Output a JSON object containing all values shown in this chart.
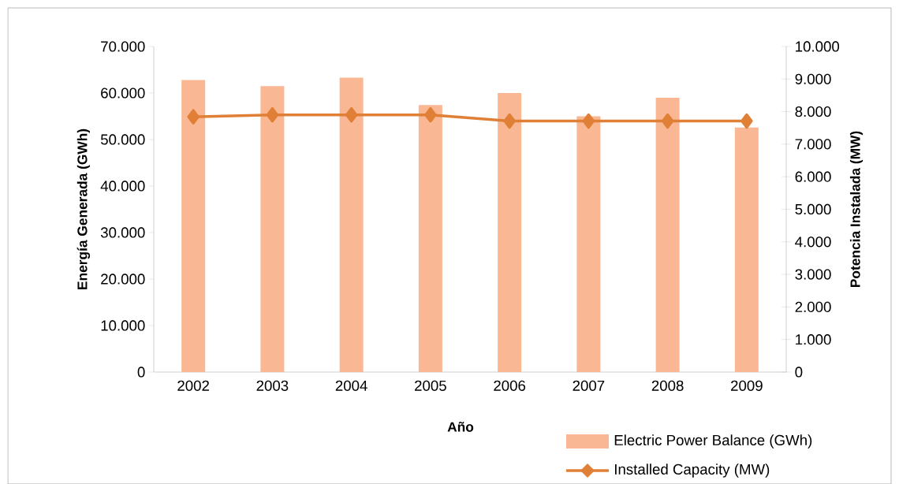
{
  "chart_data": {
    "type": "bar",
    "xlabel": "Año",
    "ylabel": "Energía Generada (GWh)",
    "y2label": "Potencia Instalada (MW)",
    "categories": [
      "2002",
      "2003",
      "2004",
      "2005",
      "2006",
      "2007",
      "2008",
      "2009"
    ],
    "series": [
      {
        "name": "Electric Power Balance (GWh)",
        "color": "#f9b793",
        "values": [
          62800,
          61500,
          63300,
          57400,
          60000,
          55000,
          59000,
          52600
        ]
      },
      {
        "name": "Installed Capacity (MW)",
        "type": "line",
        "axis": "y2",
        "color": "#e07f36",
        "marker": "diamond",
        "values": [
          7840,
          7900,
          7900,
          7900,
          7710,
          7710,
          7710,
          7710
        ]
      }
    ],
    "ylim": [
      0,
      70000
    ],
    "yticks": [
      0,
      {
        "value": 10000,
        "label": "10.000"
      },
      {
        "value": 20000,
        "label": "20.000"
      },
      {
        "value": 30000,
        "label": "30.000"
      },
      {
        "value": 40000,
        "label": "40.000"
      },
      {
        "value": 50000,
        "label": "50.000"
      },
      {
        "value": 60000,
        "label": "60.000"
      },
      {
        "value": 70000,
        "label": "70.000"
      }
    ],
    "y2lim": [
      0,
      10000
    ],
    "y2ticks": [
      0,
      {
        "value": 1000,
        "label": "1.000"
      },
      {
        "value": 2000,
        "label": "2.000"
      },
      {
        "value": 3000,
        "label": "3.000"
      },
      {
        "value": 4000,
        "label": "4.000"
      },
      {
        "value": 5000,
        "label": "5.000"
      },
      {
        "value": 6000,
        "label": "6.000"
      },
      {
        "value": 7000,
        "label": "7.000"
      },
      {
        "value": 8000,
        "label": "8.000"
      },
      {
        "value": 9000,
        "label": "9.000"
      },
      {
        "value": 10000,
        "label": "10.000"
      }
    ],
    "legend": "bottom right",
    "grid": false
  }
}
